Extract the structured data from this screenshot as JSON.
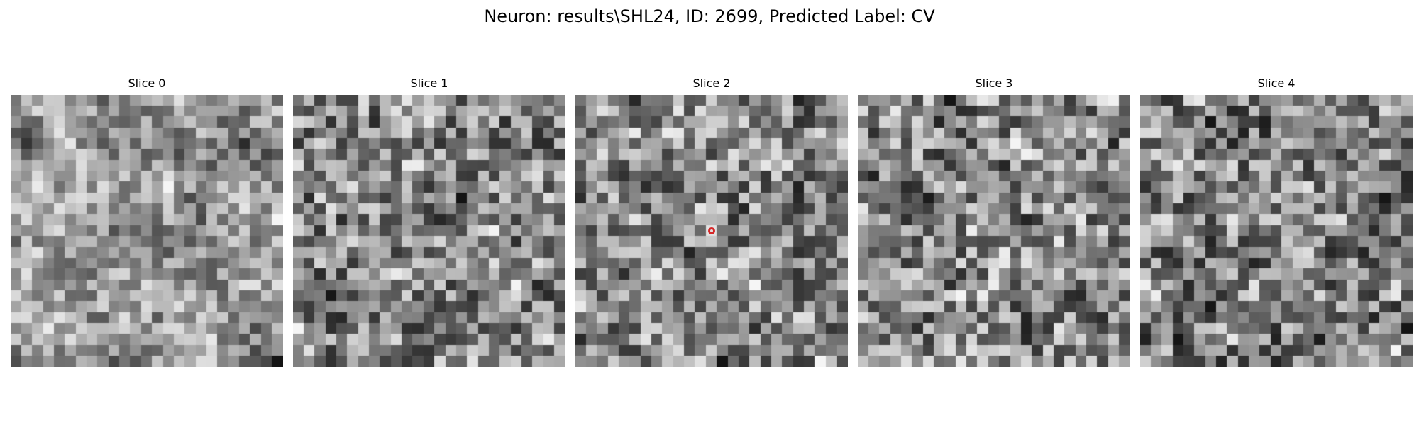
{
  "figure": {
    "title": "Neuron: results\\SHL24, ID: 2699, Predicted Label: CV",
    "colormap": "gray",
    "marker_color": "#d62728"
  },
  "slices": [
    {
      "title": "Slice 0"
    },
    {
      "title": "Slice 1"
    },
    {
      "title": "Slice 2",
      "has_marker": true
    },
    {
      "title": "Slice 3"
    },
    {
      "title": "Slice 4"
    }
  ]
}
